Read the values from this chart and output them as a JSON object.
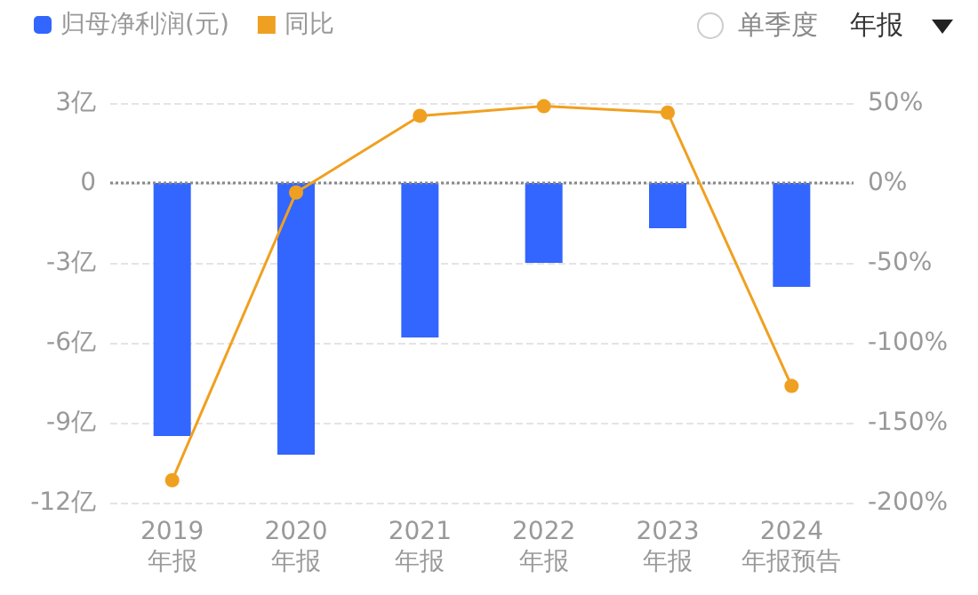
{
  "chart_data": {
    "type": "bar",
    "categories": [
      "2019\n年报",
      "2020\n年报",
      "2021\n年报",
      "2022\n年报",
      "2023\n年报",
      "2024\n年报预告"
    ],
    "series": [
      {
        "name": "归母净利润(元)",
        "color": "#3366ff",
        "values": [
          -9.5,
          -10.2,
          -5.8,
          -3.0,
          -1.7,
          -3.9
        ]
      },
      {
        "name": "同比",
        "type": "line",
        "axis": "y2",
        "color": "#f0a020",
        "values": [
          -186,
          -6,
          42,
          48,
          44,
          -127
        ]
      }
    ],
    "ylim": [
      -12,
      3
    ],
    "yticks": [
      {
        "value": -12,
        "label": "-12亿"
      },
      {
        "value": -9,
        "label": "-9亿"
      },
      {
        "value": -6,
        "label": "-6亿"
      },
      {
        "value": -3,
        "label": "-3亿"
      },
      0,
      {
        "value": 3,
        "label": "3亿"
      }
    ],
    "y2lim": [
      -200,
      50
    ],
    "y2ticks": [
      {
        "value": -200,
        "label": "-200%"
      },
      {
        "value": -150,
        "label": "-150%"
      },
      {
        "value": -100,
        "label": "-100%"
      },
      {
        "value": -50,
        "label": "-50%"
      },
      {
        "value": 0,
        "label": "0%"
      },
      {
        "value": 50,
        "label": "50%"
      }
    ],
    "ref_lines": [
      {
        "axis": "y",
        "value": 0,
        "label": null,
        "color": "#888888",
        "line_style": "dotted"
      }
    ],
    "annotations": [
      "单季度",
      "年报"
    ],
    "grid": "y",
    "legend": "top left",
    "marker": "circle",
    "line_style": "solid"
  }
}
